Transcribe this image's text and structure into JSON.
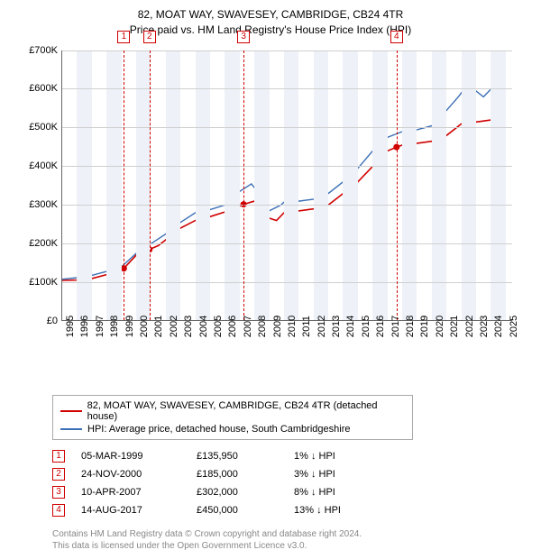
{
  "title": {
    "line1": "82, MOAT WAY, SWAVESEY, CAMBRIDGE, CB24 4TR",
    "line2": "Price paid vs. HM Land Registry's House Price Index (HPI)"
  },
  "chart": {
    "type": "line",
    "background_color": "#ffffff",
    "grid_color": "#cfcfcf",
    "alt_band_color": "#eef2f8",
    "axis_color": "#666666",
    "x_min": 1995,
    "x_max": 2025.5,
    "x_tick_step": 1,
    "x_ticks": [
      1995,
      1996,
      1997,
      1998,
      1999,
      2000,
      2001,
      2002,
      2003,
      2004,
      2005,
      2006,
      2007,
      2008,
      2009,
      2010,
      2011,
      2012,
      2013,
      2014,
      2015,
      2016,
      2017,
      2018,
      2019,
      2020,
      2021,
      2022,
      2023,
      2024,
      2025
    ],
    "y_min": 0,
    "y_max": 700000,
    "y_tick_step": 100000,
    "y_tick_labels": [
      "£0",
      "£100K",
      "£200K",
      "£300K",
      "£400K",
      "£500K",
      "£600K",
      "£700K"
    ],
    "y_label_fontsize": 11,
    "x_label_fontsize": 11,
    "title_fontsize": 12,
    "series": [
      {
        "name": "property",
        "label": "82, MOAT WAY, SWAVESEY, CAMBRIDGE, CB24 4TR (detached house)",
        "color": "#d00000",
        "line_width": 1.6,
        "data": [
          [
            1995.0,
            105000
          ],
          [
            1996.0,
            106000
          ],
          [
            1997.0,
            110000
          ],
          [
            1998.0,
            120000
          ],
          [
            1999.17,
            135950
          ],
          [
            2000.0,
            170000
          ],
          [
            2000.9,
            185000
          ],
          [
            2001.5,
            195000
          ],
          [
            2002.0,
            210000
          ],
          [
            2003.0,
            240000
          ],
          [
            2004.0,
            260000
          ],
          [
            2005.0,
            270000
          ],
          [
            2006.0,
            282000
          ],
          [
            2007.27,
            302000
          ],
          [
            2008.0,
            310000
          ],
          [
            2008.7,
            270000
          ],
          [
            2009.5,
            260000
          ],
          [
            2010.0,
            280000
          ],
          [
            2011.0,
            285000
          ],
          [
            2012.0,
            290000
          ],
          [
            2013.0,
            300000
          ],
          [
            2014.0,
            330000
          ],
          [
            2015.0,
            360000
          ],
          [
            2016.0,
            400000
          ],
          [
            2017.0,
            440000
          ],
          [
            2017.62,
            450000
          ],
          [
            2018.0,
            455000
          ],
          [
            2019.0,
            460000
          ],
          [
            2020.0,
            465000
          ],
          [
            2021.0,
            480000
          ],
          [
            2022.0,
            510000
          ],
          [
            2023.0,
            515000
          ],
          [
            2024.0,
            520000
          ],
          [
            2025.0,
            525000
          ]
        ]
      },
      {
        "name": "hpi",
        "label": "HPI: Average price, detached house, South Cambridgeshire",
        "color": "#3b6fb6",
        "line_width": 1.4,
        "data": [
          [
            1995.0,
            108000
          ],
          [
            1996.0,
            112000
          ],
          [
            1997.0,
            118000
          ],
          [
            1998.0,
            128000
          ],
          [
            1999.0,
            140000
          ],
          [
            2000.0,
            175000
          ],
          [
            2001.0,
            200000
          ],
          [
            2002.0,
            225000
          ],
          [
            2003.0,
            255000
          ],
          [
            2004.0,
            280000
          ],
          [
            2005.0,
            288000
          ],
          [
            2006.0,
            300000
          ],
          [
            2007.0,
            335000
          ],
          [
            2007.8,
            355000
          ],
          [
            2008.0,
            345000
          ],
          [
            2008.7,
            300000
          ],
          [
            2009.0,
            285000
          ],
          [
            2009.8,
            300000
          ],
          [
            2010.3,
            318000
          ],
          [
            2011.0,
            310000
          ],
          [
            2012.0,
            315000
          ],
          [
            2013.0,
            330000
          ],
          [
            2014.0,
            360000
          ],
          [
            2015.0,
            395000
          ],
          [
            2016.0,
            440000
          ],
          [
            2017.0,
            475000
          ],
          [
            2018.0,
            490000
          ],
          [
            2019.0,
            495000
          ],
          [
            2020.0,
            505000
          ],
          [
            2021.0,
            545000
          ],
          [
            2021.8,
            580000
          ],
          [
            2022.3,
            605000
          ],
          [
            2022.8,
            590000
          ],
          [
            2023.0,
            595000
          ],
          [
            2023.5,
            580000
          ],
          [
            2024.0,
            600000
          ],
          [
            2024.5,
            610000
          ],
          [
            2025.0,
            605000
          ]
        ]
      }
    ],
    "sale_markers": [
      {
        "id": "1",
        "x": 1999.17,
        "y": 135950,
        "dash_color": "#d00000"
      },
      {
        "id": "2",
        "x": 2000.9,
        "y": 185000,
        "dash_color": "#d00000"
      },
      {
        "id": "3",
        "x": 2007.27,
        "y": 302000,
        "dash_color": "#d00000"
      },
      {
        "id": "4",
        "x": 2017.62,
        "y": 450000,
        "dash_color": "#d00000"
      }
    ]
  },
  "legend": {
    "border_color": "#aaaaaa",
    "fontsize": 11,
    "items": [
      {
        "color": "#d00000",
        "label": "82, MOAT WAY, SWAVESEY, CAMBRIDGE, CB24 4TR (detached house)"
      },
      {
        "color": "#3b6fb6",
        "label": "HPI: Average price, detached house, South Cambridgeshire"
      }
    ]
  },
  "sales": {
    "rows": [
      {
        "id": "1",
        "date": "05-MAR-1999",
        "price": "£135,950",
        "pct": "1% ↓ HPI"
      },
      {
        "id": "2",
        "date": "24-NOV-2000",
        "price": "£185,000",
        "pct": "3% ↓ HPI"
      },
      {
        "id": "3",
        "date": "10-APR-2007",
        "price": "£302,000",
        "pct": "8% ↓ HPI"
      },
      {
        "id": "4",
        "date": "14-AUG-2017",
        "price": "£450,000",
        "pct": "13% ↓ HPI"
      }
    ]
  },
  "footer": {
    "line1": "Contains HM Land Registry data © Crown copyright and database right 2024.",
    "line2": "This data is licensed under the Open Government Licence v3.0.",
    "color": "#888888"
  }
}
